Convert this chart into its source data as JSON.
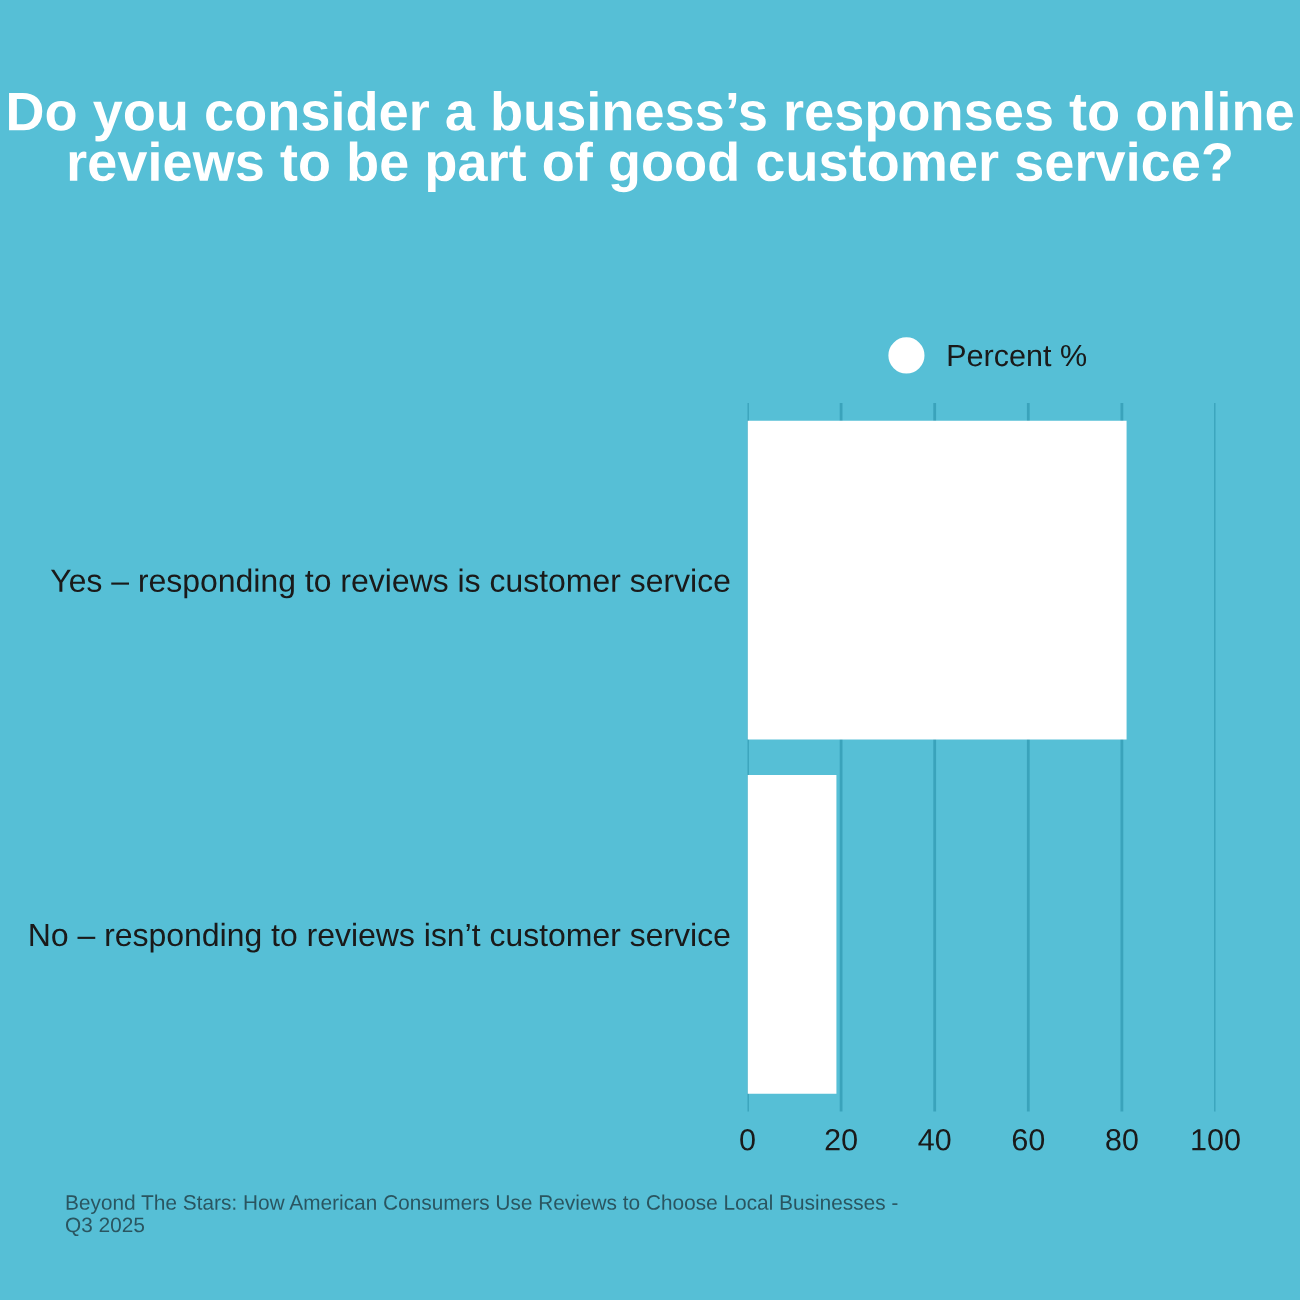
{
  "chart_data": {
    "type": "bar",
    "orientation": "horizontal",
    "title": "Do you consider a business’s responses to online reviews to be part of good customer service?",
    "categories": [
      "Yes – responding to reviews is customer service",
      "No – responding to reviews isn’t customer service"
    ],
    "series": [
      {
        "name": "Percent %",
        "color": "#ffffff",
        "values": [
          81,
          19
        ]
      }
    ],
    "xlim": [
      0,
      100
    ],
    "xticks": [
      0,
      20,
      40,
      60,
      80,
      100
    ],
    "grid": "x",
    "legend": "top",
    "annotations": [
      "Beyond The Stars: How American Consumers Use Reviews to Choose Local Businesses - Q3 2025"
    ]
  }
}
